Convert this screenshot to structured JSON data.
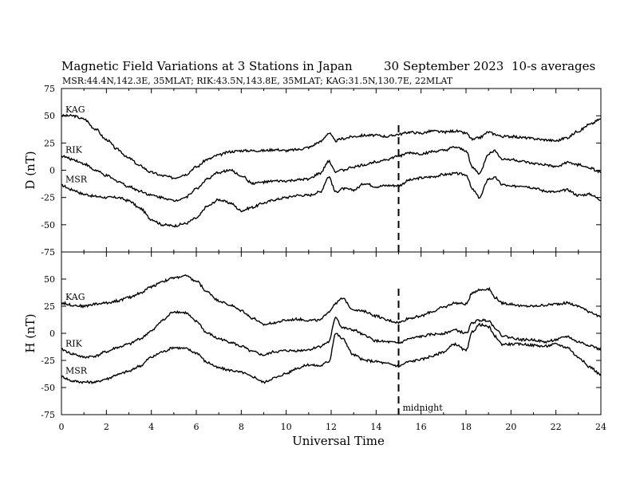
{
  "header": {
    "title": "Magnetic Field Variations at 3 Stations in Japan",
    "date": "30 September 2023",
    "averaging": "10-s averages",
    "stations": "MSR:44.4N,142.3E, 35MLAT;  RIK:43.5N,143.8E, 35MLAT;  KAG:31.5N,130.7E, 22MLAT"
  },
  "chart_data": [
    {
      "type": "line",
      "panel": "D",
      "ylabel": "D (nT)",
      "xlabel": "Universal Time",
      "xlim": [
        0,
        24
      ],
      "ylim": [
        -75,
        75
      ],
      "yticks": [
        -75,
        -50,
        -25,
        0,
        25,
        50,
        75
      ],
      "xticks": [
        0,
        2,
        4,
        6,
        8,
        10,
        12,
        14,
        16,
        18,
        20,
        22,
        24
      ],
      "grid": false,
      "annotation": {
        "x": 15,
        "text": "",
        "style": "dashed"
      },
      "series": [
        {
          "name": "KAG",
          "x": [
            0,
            0.5,
            1,
            1.5,
            2,
            2.5,
            3,
            3.5,
            4,
            4.5,
            5,
            5.5,
            6,
            6.5,
            7,
            7.5,
            8,
            8.5,
            9,
            9.5,
            10,
            10.5,
            11,
            11.5,
            11.9,
            12.2,
            12.5,
            13,
            13.5,
            14,
            14.5,
            15,
            15.5,
            16,
            16.5,
            17,
            17.5,
            18,
            18.3,
            18.6,
            19,
            19.3,
            19.6,
            20,
            20.5,
            21,
            21.5,
            22,
            22.5,
            23,
            23.5,
            24
          ],
          "y": [
            50,
            50,
            47,
            38,
            28,
            19,
            11,
            4,
            -2,
            -5,
            -7,
            -4,
            3,
            10,
            14,
            17,
            18,
            18,
            18,
            19,
            18,
            19,
            21,
            26,
            34,
            27,
            29,
            31,
            32,
            32,
            31,
            33,
            35,
            34,
            36,
            35,
            36,
            34,
            28,
            30,
            35,
            33,
            31,
            31,
            30,
            29,
            28,
            27,
            30,
            36,
            42,
            47
          ]
        },
        {
          "name": "RIK",
          "x": [
            0,
            0.5,
            1,
            1.5,
            2,
            2.5,
            3,
            3.5,
            4,
            4.5,
            5,
            5.5,
            6,
            6.5,
            7,
            7.5,
            8,
            8.5,
            9,
            9.5,
            10,
            10.5,
            11,
            11.5,
            11.9,
            12.2,
            12.5,
            13,
            13.5,
            14,
            14.5,
            15,
            15.5,
            16,
            16.5,
            17,
            17.5,
            18,
            18.3,
            18.6,
            19,
            19.3,
            19.6,
            20,
            20.5,
            21,
            21.5,
            22,
            22.5,
            23,
            23.5,
            24
          ],
          "y": [
            13,
            10,
            6,
            0,
            -5,
            -10,
            -15,
            -19,
            -23,
            -25,
            -28,
            -25,
            -17,
            -8,
            -2,
            0,
            -5,
            -12,
            -11,
            -10,
            -10,
            -9,
            -8,
            -3,
            8,
            -1,
            0,
            3,
            5,
            8,
            10,
            13,
            16,
            15,
            17,
            18,
            21,
            18,
            2,
            -3,
            15,
            18,
            10,
            10,
            8,
            6,
            5,
            3,
            7,
            5,
            2,
            -2
          ]
        },
        {
          "name": "MSR",
          "x": [
            0,
            0.5,
            1,
            1.5,
            2,
            2.5,
            3,
            3.5,
            4,
            4.5,
            5,
            5.5,
            6,
            6.5,
            7,
            7.5,
            8,
            8.5,
            9,
            9.5,
            10,
            10.5,
            11,
            11.5,
            11.9,
            12.2,
            12.5,
            13,
            13.5,
            14,
            14.5,
            15,
            15.5,
            16,
            16.5,
            17,
            17.5,
            18,
            18.3,
            18.6,
            19,
            19.3,
            19.6,
            20,
            20.5,
            21,
            21.5,
            22,
            22.5,
            23,
            23.5,
            24
          ],
          "y": [
            -14,
            -18,
            -22,
            -24,
            -25,
            -25,
            -28,
            -35,
            -45,
            -50,
            -51,
            -49,
            -44,
            -33,
            -27,
            -30,
            -37,
            -34,
            -30,
            -27,
            -25,
            -23,
            -23,
            -20,
            -6,
            -20,
            -17,
            -18,
            -12,
            -15,
            -14,
            -14,
            -9,
            -7,
            -6,
            -4,
            -3,
            -4,
            -18,
            -25,
            -8,
            -7,
            -13,
            -15,
            -14,
            -16,
            -19,
            -20,
            -18,
            -23,
            -22,
            -27
          ]
        }
      ]
    },
    {
      "type": "line",
      "panel": "H",
      "ylabel": "H (nT)",
      "xlabel": "Universal Time",
      "xlim": [
        0,
        24
      ],
      "ylim": [
        -75,
        75
      ],
      "yticks": [
        -75,
        -50,
        -25,
        0,
        25,
        50,
        75
      ],
      "xticks": [
        0,
        2,
        4,
        6,
        8,
        10,
        12,
        14,
        16,
        18,
        20,
        22,
        24
      ],
      "grid": false,
      "annotation": {
        "x": 15,
        "text": "midnight",
        "style": "dashed"
      },
      "series": [
        {
          "name": "KAG",
          "x": [
            0,
            0.5,
            1,
            1.5,
            2,
            2.5,
            3,
            3.5,
            4,
            4.5,
            5,
            5.5,
            6,
            6.5,
            7,
            7.5,
            8,
            8.5,
            9,
            9.5,
            10,
            10.5,
            11,
            11.5,
            11.9,
            12.2,
            12.5,
            13,
            13.5,
            14,
            14.5,
            15,
            15.5,
            16,
            16.5,
            17,
            17.5,
            18,
            18.3,
            18.6,
            19,
            19.3,
            19.6,
            20,
            20.5,
            21,
            21.5,
            22,
            22.5,
            23,
            23.5,
            24
          ],
          "y": [
            28,
            26,
            25,
            27,
            28,
            30,
            33,
            37,
            43,
            48,
            51,
            53,
            48,
            38,
            30,
            26,
            21,
            14,
            8,
            10,
            12,
            13,
            12,
            12,
            20,
            28,
            32,
            22,
            20,
            16,
            12,
            10,
            14,
            16,
            20,
            24,
            28,
            27,
            38,
            40,
            41,
            33,
            28,
            27,
            25,
            25,
            26,
            27,
            28,
            25,
            20,
            15
          ]
        },
        {
          "name": "RIK",
          "x": [
            0,
            0.5,
            1,
            1.5,
            2,
            2.5,
            3,
            3.5,
            4,
            4.5,
            5,
            5.5,
            6,
            6.5,
            7,
            7.5,
            8,
            8.5,
            9,
            9.5,
            10,
            10.5,
            11,
            11.5,
            11.9,
            12.2,
            12.5,
            13,
            13.5,
            14,
            14.5,
            15,
            15.5,
            16,
            16.5,
            17,
            17.5,
            18,
            18.3,
            18.6,
            19,
            19.3,
            19.6,
            20,
            20.5,
            21,
            21.5,
            22,
            22.5,
            23,
            23.5,
            24
          ],
          "y": [
            -15,
            -19,
            -22,
            -21,
            -17,
            -13,
            -10,
            -5,
            2,
            12,
            20,
            19,
            11,
            0,
            -5,
            -8,
            -12,
            -17,
            -20,
            -17,
            -16,
            -16,
            -15,
            -12,
            -8,
            15,
            5,
            3,
            -2,
            -7,
            -8,
            -9,
            -5,
            -3,
            -1,
            0,
            3,
            0,
            10,
            12,
            12,
            5,
            -2,
            -4,
            -6,
            -6,
            -8,
            -6,
            -3,
            -8,
            -11,
            -15
          ]
        },
        {
          "name": "MSR",
          "x": [
            0,
            0.5,
            1,
            1.5,
            2,
            2.5,
            3,
            3.5,
            4,
            4.5,
            5,
            5.5,
            6,
            6.5,
            7,
            7.5,
            8,
            8.5,
            9,
            9.5,
            10,
            10.5,
            11,
            11.5,
            11.9,
            12.2,
            12.5,
            13,
            13.5,
            14,
            14.5,
            15,
            15.5,
            16,
            16.5,
            17,
            17.5,
            18,
            18.3,
            18.6,
            19,
            19.3,
            19.6,
            20,
            20.5,
            21,
            21.5,
            22,
            22.5,
            23,
            23.5,
            24
          ],
          "y": [
            -40,
            -44,
            -45,
            -45,
            -42,
            -38,
            -35,
            -30,
            -22,
            -17,
            -13,
            -14,
            -18,
            -27,
            -32,
            -34,
            -36,
            -40,
            -45,
            -41,
            -37,
            -32,
            -29,
            -30,
            -26,
            0,
            -5,
            -20,
            -25,
            -26,
            -28,
            -30,
            -26,
            -24,
            -21,
            -17,
            -10,
            -16,
            2,
            8,
            6,
            -3,
            -10,
            -10,
            -10,
            -11,
            -12,
            -10,
            -13,
            -22,
            -31,
            -38
          ]
        }
      ]
    }
  ]
}
